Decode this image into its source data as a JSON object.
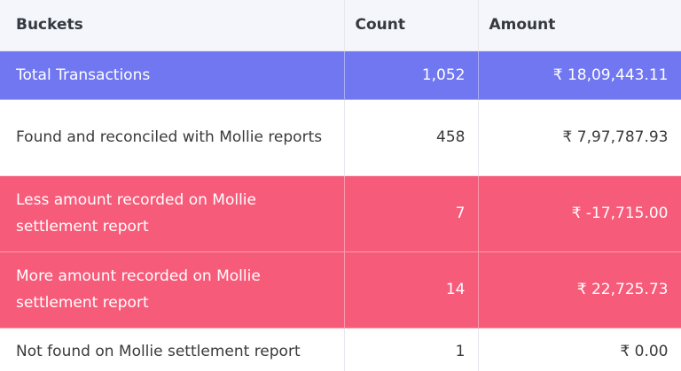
{
  "table": {
    "headers": [
      "Buckets",
      "Count",
      "Amount"
    ],
    "rows": [
      {
        "bucket": "Total Transactions",
        "count": "1,052",
        "amount": "₹ 18,09,443.11",
        "style": "total",
        "highlight_color": "#7077f1"
      },
      {
        "bucket": "Found and reconciled with Mollie reports",
        "count": "458",
        "amount": "₹ 7,97,787.93",
        "style": "plain"
      },
      {
        "bucket": "Less amount recorded on Mollie settlement report",
        "count": "7",
        "amount": "₹ -17,715.00",
        "style": "negative",
        "highlight_color": "#f75b7a"
      },
      {
        "bucket": "More amount recorded on Mollie settlement report",
        "count": "14",
        "amount": "₹ 22,725.73",
        "style": "negative",
        "highlight_color": "#f75b7a"
      },
      {
        "bucket": "Not found on Mollie settlement report",
        "count": "1",
        "amount": "₹ 0.00",
        "style": "plain"
      }
    ]
  }
}
